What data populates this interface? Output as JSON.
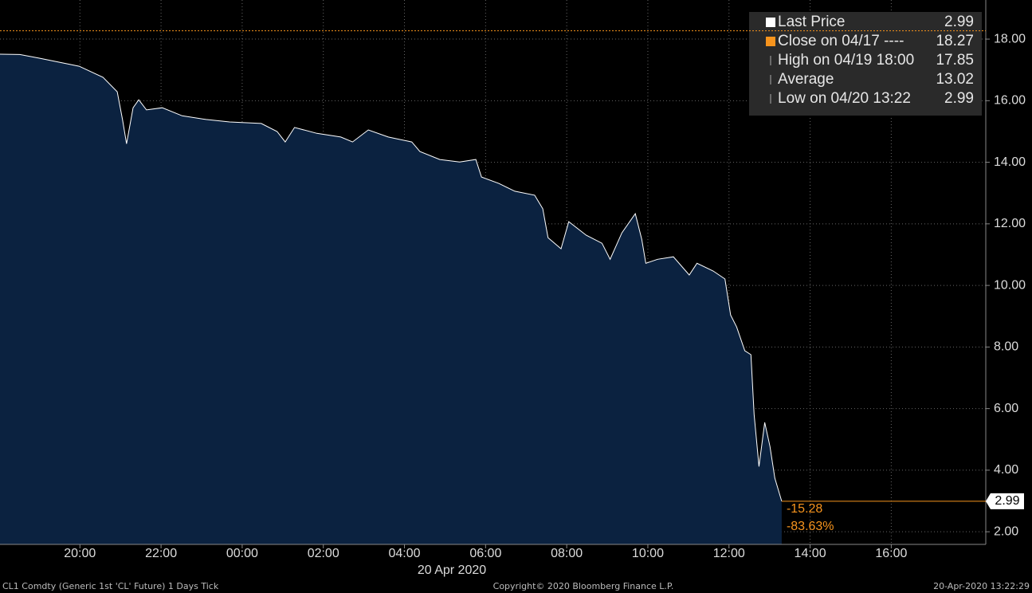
{
  "chart_data": {
    "type": "area",
    "x_label": "20 Apr 2020",
    "x": [
      -5.97,
      -5.48,
      -5.0,
      -4.02,
      -3.43,
      -3.08,
      -2.95,
      -2.85,
      -2.69,
      -2.55,
      -2.36,
      -1.97,
      -1.48,
      -0.89,
      -0.31,
      0.47,
      0.86,
      1.06,
      1.29,
      1.84,
      2.43,
      2.72,
      3.11,
      3.6,
      4.18,
      4.38,
      4.87,
      5.36,
      5.76,
      5.9,
      6.33,
      6.72,
      7.21,
      7.41,
      7.54,
      7.86,
      8.05,
      8.48,
      8.87,
      9.07,
      9.36,
      9.69,
      9.85,
      9.95,
      10.24,
      10.63,
      11.02,
      11.21,
      11.61,
      11.9,
      12.04,
      12.19,
      12.39,
      12.54,
      12.62,
      12.74,
      12.88,
      13.01,
      13.13,
      13.3
    ],
    "series": [
      {
        "name": "Last Price",
        "color": "#ffffff",
        "fill": "#0b2240",
        "values": [
          17.51,
          17.5,
          17.38,
          17.12,
          16.76,
          16.29,
          15.39,
          14.6,
          15.77,
          16.03,
          15.7,
          15.77,
          15.51,
          15.39,
          15.31,
          15.26,
          15.0,
          14.66,
          15.13,
          14.94,
          14.82,
          14.66,
          15.05,
          14.82,
          14.66,
          14.35,
          14.09,
          14.01,
          14.09,
          13.52,
          13.31,
          13.06,
          12.93,
          12.49,
          11.55,
          11.19,
          12.07,
          11.63,
          11.37,
          10.85,
          11.71,
          12.33,
          11.5,
          10.72,
          10.85,
          10.93,
          10.34,
          10.72,
          10.47,
          10.21,
          9.04,
          8.65,
          7.88,
          7.75,
          5.81,
          4.12,
          5.55,
          4.77,
          3.74,
          2.99
        ]
      }
    ],
    "xlim": [
      -5.97,
      18.33
    ],
    "ylim": [
      1.59,
      19.27
    ],
    "xticks": [
      {
        "value": -4,
        "label": "20:00"
      },
      {
        "value": -2,
        "label": "22:00"
      },
      {
        "value": 0,
        "label": "00:00"
      },
      {
        "value": 2,
        "label": "02:00"
      },
      {
        "value": 4,
        "label": "04:00"
      },
      {
        "value": 6,
        "label": "06:00"
      },
      {
        "value": 8,
        "label": "08:00"
      },
      {
        "value": 10,
        "label": "10:00"
      },
      {
        "value": 12,
        "label": "12:00"
      },
      {
        "value": 14,
        "label": "14:00"
      },
      {
        "value": 16,
        "label": "16:00"
      }
    ],
    "yticks": [
      {
        "value": 2,
        "label": "2.00"
      },
      {
        "value": 4,
        "label": "4.00"
      },
      {
        "value": 6,
        "label": "6.00"
      },
      {
        "value": 8,
        "label": "8.00"
      },
      {
        "value": 10,
        "label": "10.00"
      },
      {
        "value": 12,
        "label": "12.00"
      },
      {
        "value": 14,
        "label": "14.00"
      },
      {
        "value": 16,
        "label": "16.00"
      },
      {
        "value": 18,
        "label": "18.00"
      }
    ],
    "grid": true,
    "legend_items": [
      {
        "label": "Last Price",
        "value": 2.99,
        "color": "#ffffff"
      },
      {
        "label": "Close on 04/17 ----",
        "value": 18.27,
        "color": "#f7941d"
      },
      {
        "label": "High on 04/19 18:00",
        "value": 17.85,
        "color": "#aaaaaa"
      },
      {
        "label": "Average",
        "value": 13.02,
        "color": "#aaaaaa"
      },
      {
        "label": "Low on 04/20 13:22",
        "value": 2.99,
        "color": "#aaaaaa"
      }
    ],
    "change": -15.28,
    "change_pct": {
      "value": -83.63,
      "label": "-83.63%"
    },
    "footer_left": "CL1 Comdty (Generic 1st 'CL' Future) 1 Days  Tick",
    "footer_center": "Copyright© 2020 Bloomberg Finance L.P.",
    "footer_right": "20-Apr-2020 13:22:29"
  }
}
